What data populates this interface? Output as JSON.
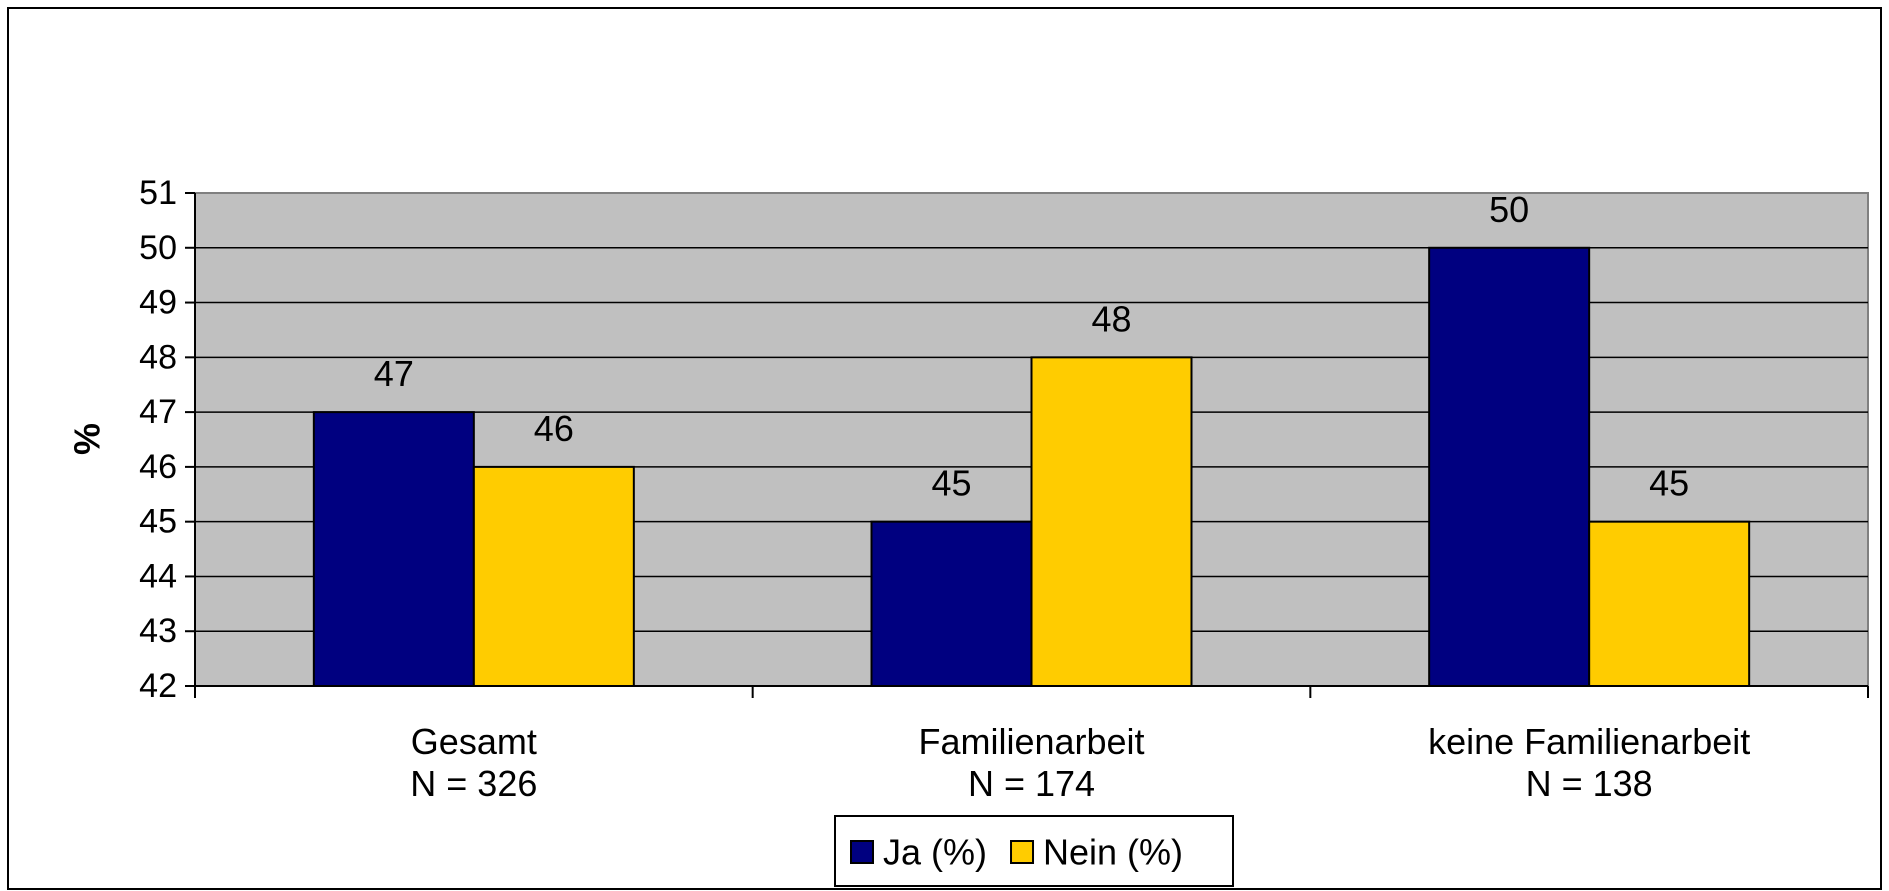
{
  "chart_data": {
    "type": "bar",
    "title": "",
    "xlabel": "",
    "ylabel": "%",
    "ylim": [
      42,
      51
    ],
    "yticks": [
      42,
      43,
      44,
      45,
      46,
      47,
      48,
      49,
      50,
      51
    ],
    "grid": true,
    "legend_position": "bottom-center",
    "categories": [
      {
        "name": "Gesamt",
        "n": "N = 326"
      },
      {
        "name": "Familienarbeit",
        "n": "N = 174"
      },
      {
        "name": "keine Familienarbeit",
        "n": "N = 138"
      }
    ],
    "series": [
      {
        "name": "Ja (%)",
        "color": "#000080",
        "values": [
          47,
          45,
          50
        ]
      },
      {
        "name": "Nein (%)",
        "color": "#FFCC00",
        "values": [
          46,
          48,
          45
        ]
      }
    ],
    "plot_background": "#C0C0C0"
  }
}
